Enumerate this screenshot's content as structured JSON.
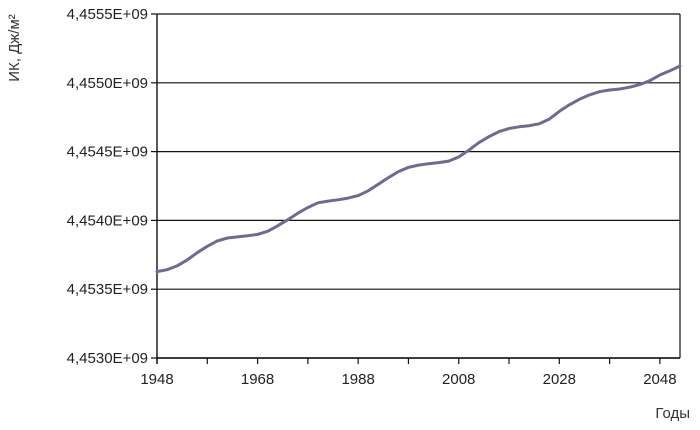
{
  "chart_data": {
    "type": "line",
    "title": "",
    "xlabel": "Годы",
    "ylabel": "ИК, Дж/м²",
    "xlim": [
      1948,
      2052
    ],
    "ylim": [
      4453000000,
      4455500000
    ],
    "x_ticks": [
      1948,
      1968,
      1988,
      2008,
      2028,
      2048
    ],
    "x_tick_labels": [
      "1948",
      "1968",
      "1988",
      "2008",
      "2028",
      "2048"
    ],
    "y_ticks": [
      4453000000,
      4453500000,
      4454000000,
      4454500000,
      4455000000,
      4455500000
    ],
    "y_tick_labels": [
      "4,4530E+09",
      "4,4535E+09",
      "4,4540E+09",
      "4,4545E+09",
      "4,4550E+09",
      "4,4555E+09"
    ],
    "grid": "horizontal",
    "legend": "none",
    "series": [
      {
        "color": "#6b6b94",
        "x": [
          1948,
          1950,
          1952,
          1954,
          1956,
          1958,
          1960,
          1962,
          1964,
          1966,
          1968,
          1970,
          1972,
          1974,
          1976,
          1978,
          1980,
          1982,
          1984,
          1986,
          1988,
          1990,
          1992,
          1994,
          1996,
          1998,
          2000,
          2002,
          2004,
          2006,
          2008,
          2010,
          2012,
          2014,
          2016,
          2018,
          2020,
          2022,
          2024,
          2026,
          2028,
          2030,
          2032,
          2034,
          2036,
          2038,
          2040,
          2042,
          2044,
          2046,
          2048,
          2050,
          2052
        ],
        "y": [
          4453628000,
          4453642000,
          4453669000,
          4453713000,
          4453765000,
          4453812000,
          4453851000,
          4453872000,
          4453880000,
          4453888000,
          4453898000,
          4453921000,
          4453961000,
          4454005000,
          4454052000,
          4454094000,
          4454128000,
          4454140000,
          4454150000,
          4454162000,
          4454180000,
          4454215000,
          4454263000,
          4454310000,
          4454355000,
          4454385000,
          4454402000,
          4454412000,
          4454420000,
          4454431000,
          4454461000,
          4454510000,
          4454565000,
          4454608000,
          4454645000,
          4454668000,
          4454680000,
          4454688000,
          4454702000,
          4454736000,
          4454792000,
          4454840000,
          4454880000,
          4454912000,
          4454935000,
          4454948000,
          4454955000,
          4454968000,
          4454987000,
          4455015000,
          4455057000,
          4455087000,
          4455122000
        ]
      }
    ]
  }
}
